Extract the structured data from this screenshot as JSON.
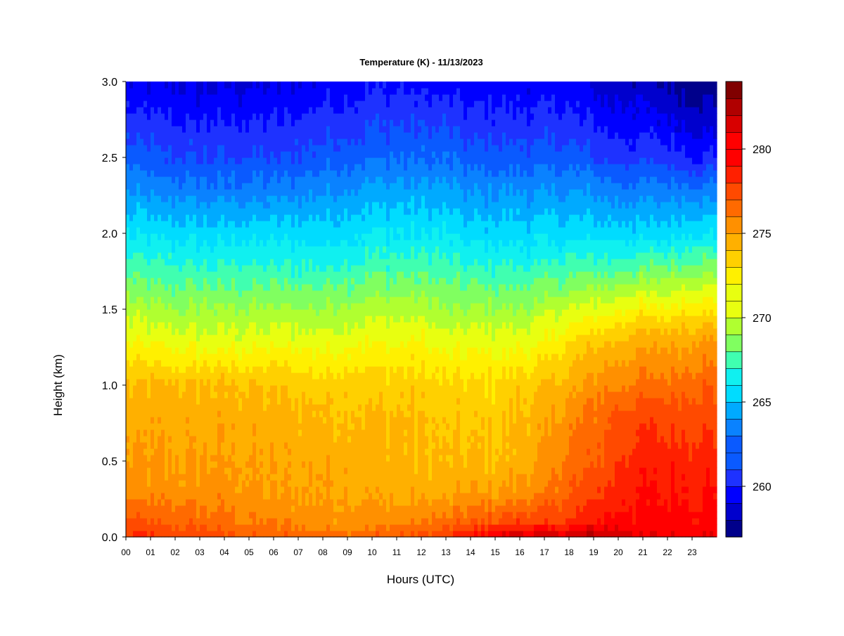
{
  "chart_data": {
    "type": "heatmap",
    "title": "Temperature (K) - 11/13/2023",
    "xlabel": "Hours (UTC)",
    "ylabel": "Height (km)",
    "xlim": [
      0,
      24
    ],
    "ylim": [
      0,
      3.0
    ],
    "x_ticks": [
      "00",
      "01",
      "02",
      "03",
      "04",
      "05",
      "06",
      "07",
      "08",
      "09",
      "10",
      "11",
      "12",
      "13",
      "14",
      "15",
      "16",
      "17",
      "18",
      "19",
      "20",
      "21",
      "22",
      "23"
    ],
    "y_ticks": [
      "0.0",
      "0.5",
      "1.0",
      "1.5",
      "2.0",
      "2.5",
      "3.0"
    ],
    "colorbar": {
      "range": [
        257,
        284
      ],
      "ticks": [
        "260",
        "265",
        "270",
        "275",
        "280"
      ],
      "levels": 27,
      "colors": [
        "#00008b",
        "#0000cd",
        "#0000ff",
        "#1e32ff",
        "#0a5aff",
        "#0a82ff",
        "#00aaff",
        "#00dcff",
        "#10f0f0",
        "#40ffb0",
        "#80ff60",
        "#b0ff30",
        "#e8ff10",
        "#fff000",
        "#ffd000",
        "#ffb000",
        "#ff9000",
        "#ff6a00",
        "#ff4a00",
        "#ff2000",
        "#ff0000",
        "#d80000",
        "#b00000",
        "#800000"
      ]
    },
    "hours": [
      0,
      2,
      4,
      6,
      8,
      10,
      12,
      13,
      14,
      15,
      16,
      17,
      18,
      19,
      20,
      21,
      22,
      23,
      24
    ],
    "heights": [
      0.0,
      0.1,
      0.3,
      0.5,
      0.8,
      1.0,
      1.3,
      1.5,
      1.8,
      2.0,
      2.3,
      2.5,
      2.8,
      3.0
    ],
    "values": [
      [
        278.5,
        277.5,
        275.5,
        275.0,
        274.5,
        274.0,
        271.5,
        270.0,
        267.5,
        266.0,
        263.5,
        262.0,
        260.5,
        259.5
      ],
      [
        278.0,
        277.0,
        275.5,
        275.0,
        274.5,
        274.0,
        271.0,
        269.5,
        267.0,
        265.5,
        263.0,
        261.5,
        260.0,
        259.0
      ],
      [
        277.5,
        276.5,
        275.5,
        275.0,
        274.5,
        274.0,
        271.0,
        269.5,
        267.0,
        265.5,
        263.0,
        261.5,
        260.0,
        259.0
      ],
      [
        277.0,
        276.0,
        275.0,
        274.8,
        274.3,
        273.8,
        271.0,
        269.5,
        267.0,
        265.5,
        263.0,
        261.5,
        260.0,
        259.0
      ],
      [
        277.0,
        275.5,
        275.0,
        274.8,
        274.0,
        273.5,
        271.0,
        269.5,
        267.0,
        265.5,
        263.5,
        262.0,
        260.5,
        259.5
      ],
      [
        277.0,
        275.5,
        274.8,
        274.5,
        274.0,
        273.5,
        271.5,
        270.0,
        267.5,
        266.0,
        264.0,
        262.5,
        261.0,
        260.0
      ],
      [
        277.5,
        276.0,
        274.5,
        274.0,
        273.8,
        273.3,
        271.5,
        270.0,
        267.5,
        266.0,
        264.0,
        262.5,
        261.0,
        260.0
      ],
      [
        278.5,
        276.5,
        274.5,
        274.0,
        273.5,
        273.0,
        271.0,
        269.5,
        267.5,
        266.0,
        264.0,
        262.5,
        261.0,
        259.5
      ],
      [
        279.5,
        277.0,
        275.0,
        274.0,
        273.5,
        273.0,
        271.0,
        269.5,
        267.0,
        265.5,
        263.5,
        262.0,
        260.5,
        259.5
      ],
      [
        281.0,
        277.5,
        275.0,
        274.0,
        273.5,
        273.0,
        271.0,
        269.5,
        267.0,
        265.5,
        263.5,
        262.0,
        260.5,
        259.5
      ],
      [
        281.5,
        278.0,
        275.5,
        274.5,
        274.0,
        273.5,
        271.0,
        269.5,
        267.0,
        265.5,
        263.5,
        262.0,
        260.5,
        259.5
      ],
      [
        281.5,
        278.0,
        276.0,
        275.0,
        274.5,
        273.8,
        271.5,
        270.0,
        267.0,
        265.5,
        263.5,
        262.0,
        260.5,
        259.5
      ],
      [
        281.5,
        278.5,
        277.0,
        276.5,
        275.5,
        274.5,
        272.5,
        270.5,
        267.5,
        265.5,
        263.5,
        262.0,
        260.5,
        259.5
      ],
      [
        282.5,
        279.5,
        278.0,
        277.0,
        276.5,
        275.5,
        273.5,
        271.0,
        267.5,
        265.5,
        263.5,
        261.5,
        260.0,
        259.0
      ],
      [
        281.5,
        280.0,
        279.0,
        278.5,
        277.5,
        276.0,
        274.0,
        271.5,
        267.5,
        265.5,
        263.0,
        261.0,
        259.5,
        258.5
      ],
      [
        280.5,
        280.0,
        279.5,
        279.0,
        278.0,
        276.5,
        274.5,
        272.0,
        268.0,
        265.5,
        263.0,
        261.0,
        259.5,
        258.5
      ],
      [
        280.5,
        280.0,
        279.5,
        279.0,
        278.0,
        276.5,
        274.5,
        272.0,
        268.0,
        265.5,
        263.0,
        261.0,
        259.0,
        258.0
      ],
      [
        280.5,
        280.0,
        279.5,
        279.0,
        278.0,
        277.0,
        275.0,
        272.5,
        268.5,
        266.0,
        263.0,
        260.5,
        258.5,
        257.5
      ],
      [
        280.5,
        280.0,
        279.5,
        279.0,
        278.0,
        277.0,
        275.0,
        272.5,
        268.5,
        266.0,
        263.0,
        260.5,
        258.5,
        257.5
      ]
    ]
  }
}
